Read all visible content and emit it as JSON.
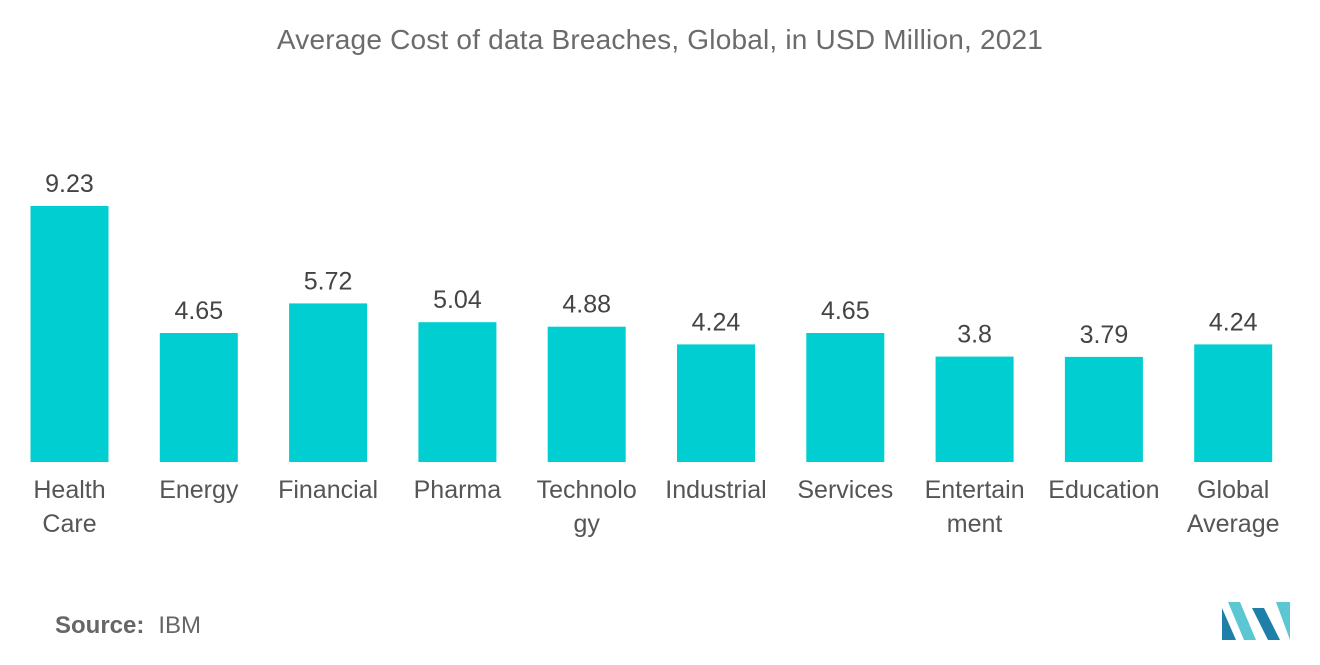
{
  "chart_data": {
    "type": "bar",
    "title": "Average Cost of data Breaches, Global, in USD Million, 2021",
    "categories": [
      [
        "Health",
        "Care"
      ],
      [
        "Energy"
      ],
      [
        "Financial"
      ],
      [
        "Pharma"
      ],
      [
        "Technolo",
        "gy"
      ],
      [
        "Industrial"
      ],
      [
        "Services"
      ],
      [
        "Entertain",
        "ment"
      ],
      [
        "Education"
      ],
      [
        "Global",
        "Average"
      ]
    ],
    "values": [
      9.23,
      4.65,
      5.72,
      5.04,
      4.88,
      4.24,
      4.65,
      3.8,
      3.79,
      4.24
    ],
    "value_labels": [
      "9.23",
      "4.65",
      "5.72",
      "5.04",
      "4.88",
      "4.24",
      "4.65",
      "3.8",
      "3.79",
      "4.24"
    ],
    "xlabel": "",
    "ylabel": "",
    "ylim": [
      0,
      9.23
    ],
    "grid": false,
    "legend": "none",
    "bar_color": "#00CED1"
  },
  "source": {
    "label": "Source:",
    "value": "IBM"
  },
  "logo": {
    "icon": "mordor-logo-icon",
    "colors": [
      "#1e7fa8",
      "#5cc6d3"
    ]
  }
}
